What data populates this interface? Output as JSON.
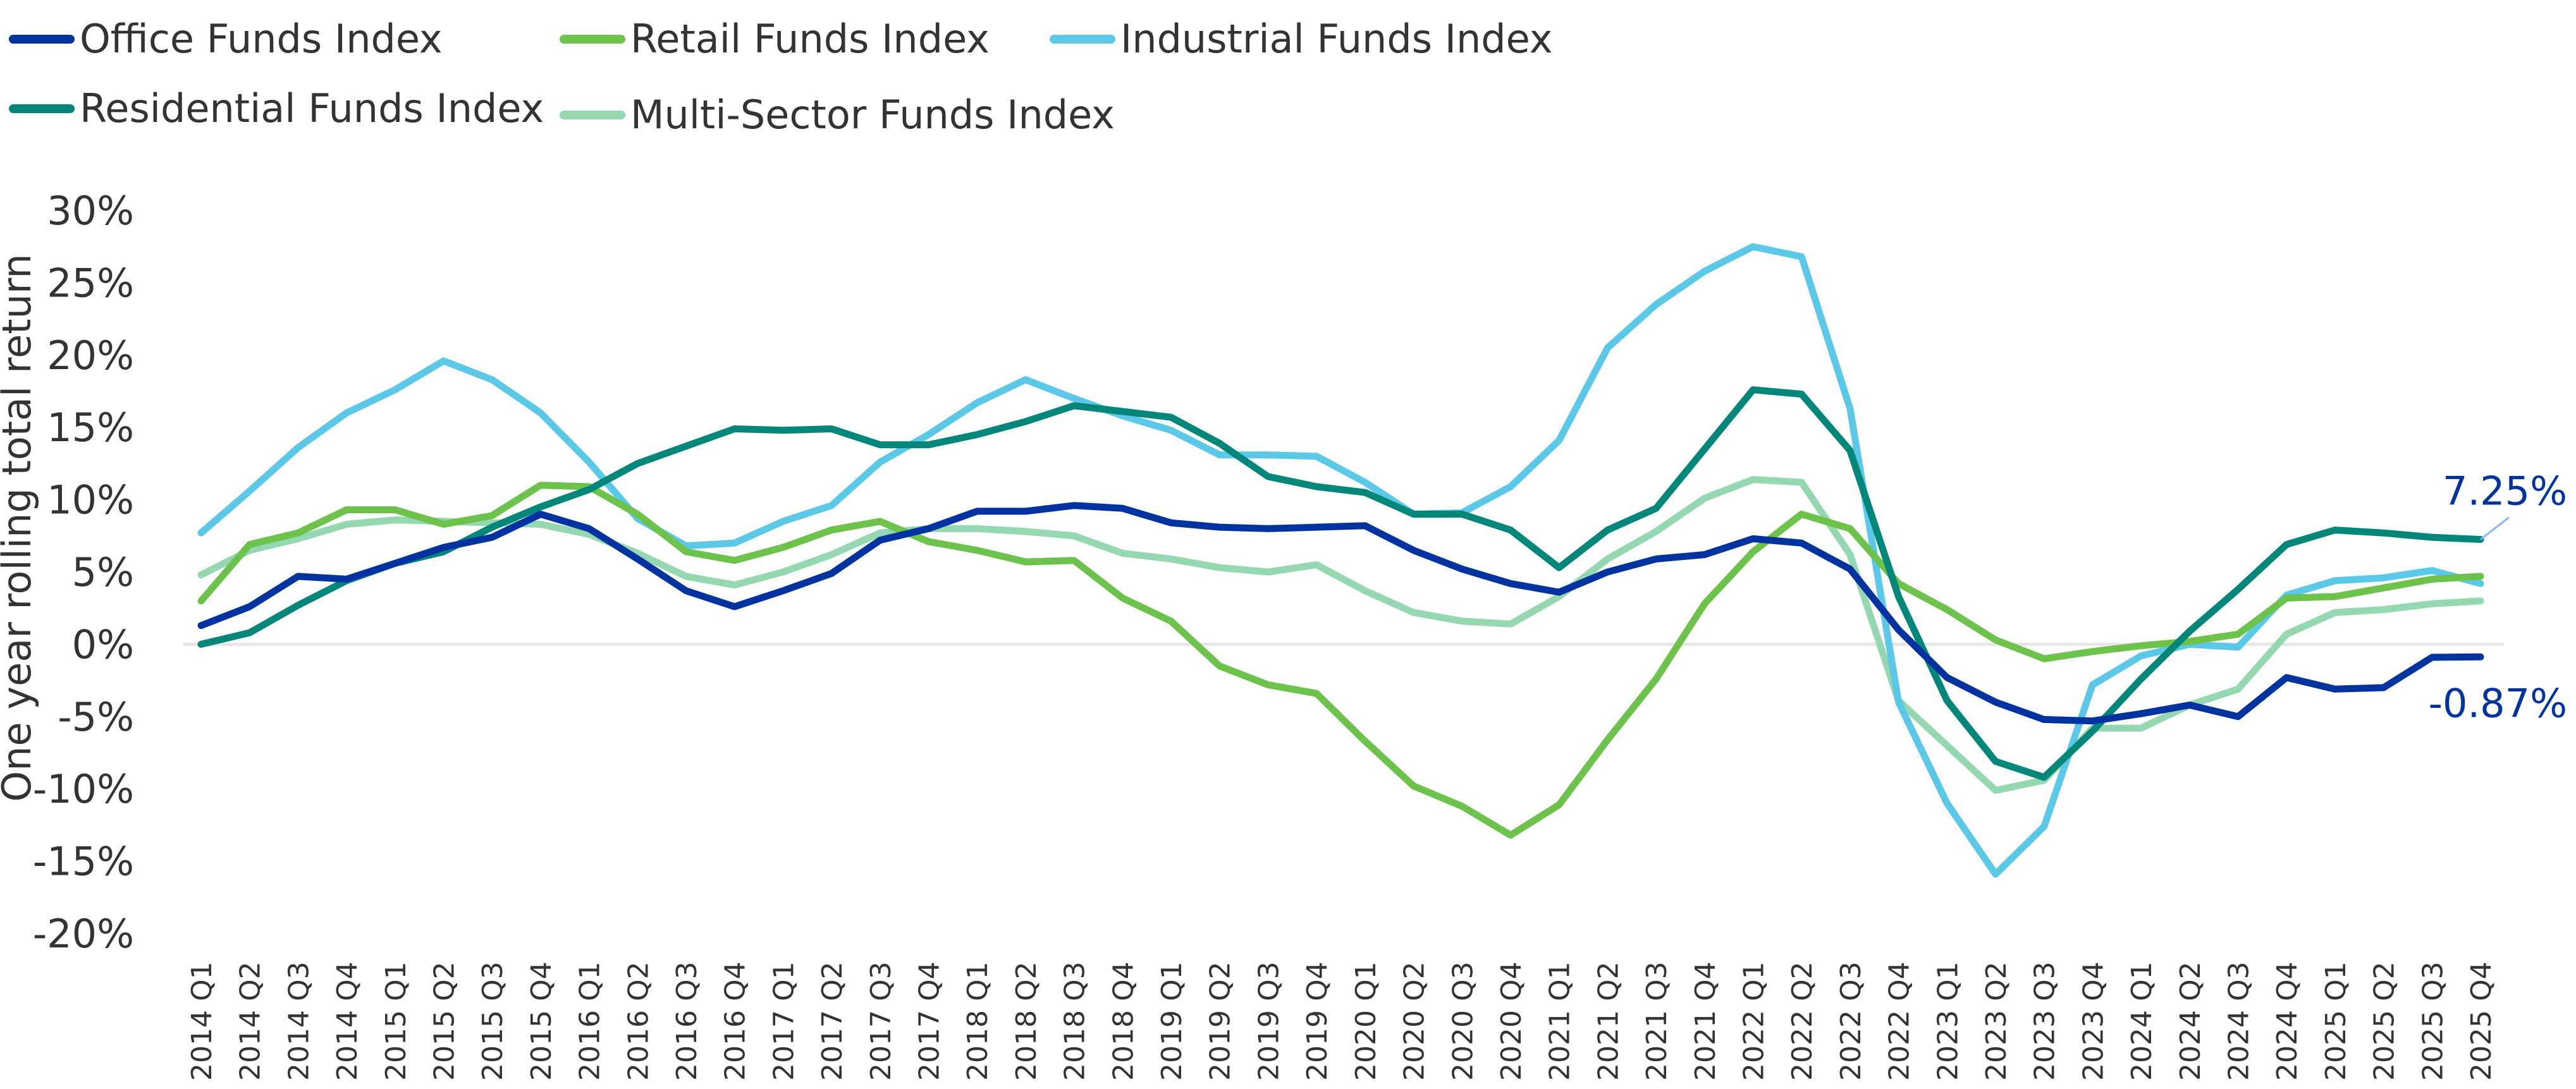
{
  "chart_data": {
    "type": "line",
    "title": "",
    "xlabel": "",
    "ylabel": "One year rolling total return",
    "ylim": [
      -20,
      30
    ],
    "yticks": [
      "30%",
      "25%",
      "20%",
      "15%",
      "10%",
      "5%",
      "0%",
      "-5%",
      "-10%",
      "-15%",
      "-20%"
    ],
    "ytick_values": [
      30,
      25,
      20,
      15,
      10,
      5,
      0,
      -5,
      -10,
      -15,
      -20
    ],
    "grid": false,
    "zero_line": true,
    "legend_position": "top-left",
    "x": [
      "2014 Q1",
      "2014 Q2",
      "2014 Q3",
      "2014 Q4",
      "2015 Q1",
      "2015 Q2",
      "2015 Q3",
      "2015 Q4",
      "2016 Q1",
      "2016 Q2",
      "2016 Q3",
      "2016 Q4",
      "2017 Q1",
      "2017 Q2",
      "2017 Q3",
      "2017 Q4",
      "2018 Q1",
      "2018 Q2",
      "2018 Q3",
      "2018 Q4",
      "2019 Q1",
      "2019 Q2",
      "2019 Q3",
      "2019 Q4",
      "2020 Q1",
      "2020 Q2",
      "2020 Q3",
      "2020 Q4",
      "2021 Q1",
      "2021 Q2",
      "2021 Q3",
      "2021 Q4",
      "2022 Q1",
      "2022 Q2",
      "2022 Q3",
      "2022 Q4",
      "2023 Q1",
      "2023 Q2",
      "2023 Q3",
      "2023 Q4",
      "2024 Q1",
      "2024 Q2",
      "2024 Q3",
      "2024 Q4",
      "2025 Q1",
      "2025 Q2",
      "2025 Q3",
      "2025 Q4"
    ],
    "series": [
      {
        "name": "Office Funds Index",
        "color": "#0033a0",
        "values": [
          1.3,
          2.6,
          4.7,
          4.5,
          5.6,
          6.7,
          7.4,
          9.0,
          8.0,
          5.9,
          3.7,
          2.6,
          3.7,
          4.9,
          7.2,
          8.0,
          9.2,
          9.2,
          9.6,
          9.4,
          8.4,
          8.1,
          8.0,
          8.1,
          8.2,
          6.5,
          5.2,
          4.2,
          3.6,
          5.0,
          5.9,
          6.2,
          7.3,
          7.0,
          5.2,
          1.0,
          -2.3,
          -4.0,
          -5.2,
          -5.3,
          -4.8,
          -4.2,
          -5.0,
          -2.3,
          -3.1,
          -3.0,
          -0.9,
          -0.87
        ]
      },
      {
        "name": "Retail Funds Index",
        "color": "#6cc24a",
        "values": [
          3.0,
          6.9,
          7.7,
          9.3,
          9.3,
          8.3,
          8.9,
          11.0,
          10.9,
          9.0,
          6.4,
          5.8,
          6.7,
          7.9,
          8.5,
          7.1,
          6.5,
          5.7,
          5.8,
          3.2,
          1.6,
          -1.5,
          -2.8,
          -3.4,
          -6.7,
          -9.8,
          -11.2,
          -13.2,
          -11.1,
          -6.6,
          -2.4,
          2.8,
          6.4,
          9.0,
          8.0,
          4.2,
          2.4,
          0.3,
          -1.0,
          -0.5,
          -0.1,
          0.2,
          0.7,
          3.2,
          3.3,
          3.9,
          4.5,
          4.7
        ]
      },
      {
        "name": "Industrial Funds Index",
        "color": "#5bc8e8",
        "values": [
          7.7,
          10.6,
          13.6,
          16.0,
          17.6,
          19.6,
          18.3,
          16.0,
          12.6,
          8.7,
          6.8,
          7.0,
          8.5,
          9.6,
          12.6,
          14.5,
          16.7,
          18.3,
          17.0,
          15.8,
          14.8,
          13.1,
          13.1,
          13.0,
          11.2,
          9.0,
          9.1,
          10.9,
          14.1,
          20.5,
          23.5,
          25.8,
          27.5,
          26.8,
          16.3,
          -4.0,
          -11.0,
          -15.9,
          -12.6,
          -2.8,
          -0.8,
          0.0,
          -0.2,
          3.4,
          4.4,
          4.6,
          5.1,
          4.2
        ]
      },
      {
        "name": "Residential Funds Index",
        "color": "#00877a",
        "values": [
          0.0,
          0.8,
          2.7,
          4.4,
          5.6,
          6.4,
          8.1,
          9.5,
          10.7,
          12.5,
          13.7,
          14.9,
          14.8,
          14.9,
          13.8,
          13.8,
          14.5,
          15.4,
          16.5,
          16.1,
          15.7,
          13.9,
          11.6,
          10.9,
          10.5,
          9.0,
          9.0,
          7.9,
          5.3,
          7.9,
          9.4,
          13.5,
          17.6,
          17.3,
          13.4,
          3.3,
          -3.9,
          -8.1,
          -9.2,
          -6.0,
          -2.4,
          0.9,
          3.8,
          6.9,
          7.9,
          7.7,
          7.4,
          7.25
        ]
      },
      {
        "name": "Multi-Sector Funds Index",
        "color": "#94d7b0",
        "values": [
          4.8,
          6.5,
          7.3,
          8.3,
          8.6,
          8.5,
          8.4,
          8.3,
          7.6,
          6.3,
          4.7,
          4.1,
          5.0,
          6.2,
          7.7,
          8.0,
          8.0,
          7.8,
          7.5,
          6.3,
          5.9,
          5.3,
          5.0,
          5.5,
          3.7,
          2.2,
          1.6,
          1.4,
          3.3,
          5.9,
          7.8,
          10.1,
          11.4,
          11.2,
          6.2,
          -3.9,
          -7.0,
          -10.1,
          -9.4,
          -5.8,
          -5.8,
          -4.2,
          -3.1,
          0.7,
          2.2,
          2.4,
          2.8,
          3.0
        ]
      }
    ],
    "annotations": [
      {
        "text": "7.25%",
        "series": "Residential Funds Index",
        "x": "2025 Q4",
        "value": 7.25,
        "color": "#0033a0"
      },
      {
        "text": "-0.87%",
        "series": "Office Funds Index",
        "x": "2025 Q4",
        "value": -0.87,
        "color": "#0033a0"
      }
    ]
  },
  "legend": {
    "items": [
      {
        "label": "Office Funds Index",
        "color": "#0033a0"
      },
      {
        "label": "Retail Funds Index",
        "color": "#6cc24a"
      },
      {
        "label": "Industrial Funds Index",
        "color": "#5bc8e8"
      },
      {
        "label": "Residential Funds Index",
        "color": "#00877a"
      },
      {
        "label": "Multi-Sector Funds Index",
        "color": "#94d7b0"
      }
    ]
  }
}
